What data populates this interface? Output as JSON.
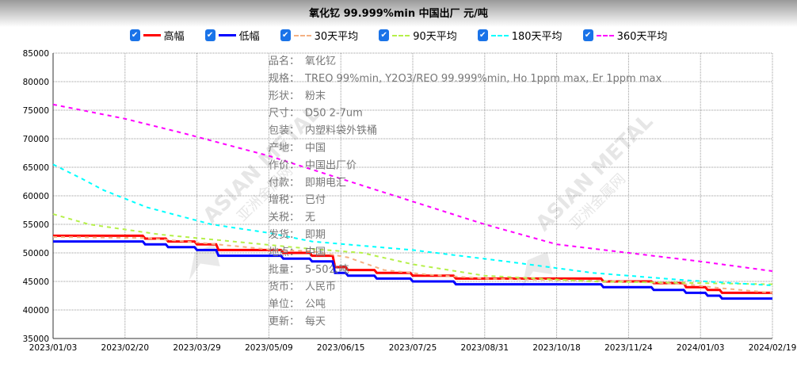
{
  "chart_data": {
    "type": "line",
    "title": "氧化钇 99.999%min 中国出厂 元/吨",
    "xlabel": "",
    "ylabel": "",
    "x_ticks": [
      "2023/01/03",
      "2023/02/20",
      "2023/03/29",
      "2023/05/09",
      "2023/06/15",
      "2023/07/25",
      "2023/08/31",
      "2023/10/18",
      "2023/11/24",
      "2024/01/03",
      "2024/02/19"
    ],
    "x_note": "x values are positions in tick-index units (0 = 2023/01/03, 10 = 2024/02/19)",
    "ylim": [
      35000,
      85000
    ],
    "y_ticks": [
      35000,
      40000,
      45000,
      50000,
      55000,
      60000,
      65000,
      70000,
      75000,
      80000,
      85000
    ],
    "grid": true,
    "legend_placement": "top-center",
    "series": [
      {
        "name": "高幅",
        "color": "#ff0000",
        "style": "step",
        "width": 3,
        "points": [
          [
            0,
            53000
          ],
          [
            1.28,
            52500
          ],
          [
            1.6,
            52000
          ],
          [
            2.0,
            51500
          ],
          [
            2.3,
            50500
          ],
          [
            3.2,
            50000
          ],
          [
            3.6,
            49500
          ],
          [
            3.92,
            47500
          ],
          [
            4.1,
            47000
          ],
          [
            4.5,
            46500
          ],
          [
            5.0,
            46000
          ],
          [
            5.6,
            45500
          ],
          [
            7.65,
            45000
          ],
          [
            8.35,
            44700
          ],
          [
            8.8,
            44000
          ],
          [
            9.1,
            43500
          ],
          [
            9.3,
            43000
          ],
          [
            10,
            43000
          ]
        ]
      },
      {
        "name": "低幅",
        "color": "#0000ff",
        "style": "step",
        "width": 3,
        "points": [
          [
            0,
            52000
          ],
          [
            1.28,
            51500
          ],
          [
            1.6,
            51000
          ],
          [
            2.0,
            50500
          ],
          [
            2.3,
            49500
          ],
          [
            3.2,
            49000
          ],
          [
            3.6,
            48500
          ],
          [
            3.92,
            46500
          ],
          [
            4.1,
            46000
          ],
          [
            4.5,
            45500
          ],
          [
            5.0,
            45000
          ],
          [
            5.6,
            44500
          ],
          [
            7.65,
            44000
          ],
          [
            8.35,
            43500
          ],
          [
            8.8,
            43000
          ],
          [
            9.1,
            42500
          ],
          [
            9.3,
            42000
          ],
          [
            10,
            42000
          ]
        ]
      },
      {
        "name": "30天平均",
        "color": "#f4b183",
        "style": "dash",
        "width": 2,
        "points": [
          [
            0,
            52800
          ],
          [
            1.3,
            52600
          ],
          [
            2.2,
            51600
          ],
          [
            3.0,
            50600
          ],
          [
            3.6,
            50300
          ],
          [
            4.1,
            49200
          ],
          [
            4.6,
            47000
          ],
          [
            5.2,
            46200
          ],
          [
            6.0,
            45500
          ],
          [
            8.0,
            45000
          ],
          [
            8.8,
            44500
          ],
          [
            9.3,
            43800
          ],
          [
            10,
            43000
          ]
        ]
      },
      {
        "name": "90天平均",
        "color": "#b6f04a",
        "style": "dash",
        "width": 2,
        "points": [
          [
            0,
            56800
          ],
          [
            0.5,
            55000
          ],
          [
            1.5,
            53200
          ],
          [
            2.5,
            52000
          ],
          [
            3.5,
            50800
          ],
          [
            4.3,
            50000
          ],
          [
            5.0,
            48000
          ],
          [
            6.0,
            46000
          ],
          [
            7.5,
            45000
          ],
          [
            10,
            44500
          ]
        ]
      },
      {
        "name": "180天平均",
        "color": "#00ffff",
        "style": "dash",
        "width": 2,
        "points": [
          [
            0,
            65500
          ],
          [
            0.4,
            63000
          ],
          [
            0.7,
            61000
          ],
          [
            1.3,
            58000
          ],
          [
            2.2,
            55000
          ],
          [
            3.0,
            53500
          ],
          [
            3.6,
            52000
          ],
          [
            5.0,
            50500
          ],
          [
            6.3,
            48500
          ],
          [
            7.5,
            46500
          ],
          [
            8.8,
            45200
          ],
          [
            10,
            44300
          ]
        ]
      },
      {
        "name": "360天平均",
        "color": "#ff00ff",
        "style": "dash",
        "width": 2,
        "points": [
          [
            0,
            76000
          ],
          [
            1,
            73500
          ],
          [
            1.8,
            71000
          ],
          [
            3,
            67000
          ],
          [
            4,
            63000
          ],
          [
            5,
            59000
          ],
          [
            6,
            55000
          ],
          [
            7,
            51500
          ],
          [
            8,
            50000
          ],
          [
            9,
            48500
          ],
          [
            10,
            46800
          ]
        ]
      }
    ],
    "info_box": [
      {
        "k": "品名：",
        "v": "氧化钇"
      },
      {
        "k": "规格：",
        "v": "TREO 99%min, Y2O3/REO 99.999%min, Ho 1ppm max, Er 1ppm max"
      },
      {
        "k": "形状：",
        "v": "粉末"
      },
      {
        "k": "尺寸：",
        "v": "D50 2-7um"
      },
      {
        "k": "包装：",
        "v": "内塑料袋外铁桶"
      },
      {
        "k": "产地：",
        "v": "中国"
      },
      {
        "k": "作价：",
        "v": "中国出厂价"
      },
      {
        "k": "付款：",
        "v": "即期电汇"
      },
      {
        "k": "增税：",
        "v": "已付"
      },
      {
        "k": "关税：",
        "v": "无"
      },
      {
        "k": "发货：",
        "v": "即期"
      },
      {
        "k": "地点：",
        "v": "中国"
      },
      {
        "k": "批量：",
        "v": "5-50公吨"
      },
      {
        "k": "货币：",
        "v": "人民币"
      },
      {
        "k": "单位：",
        "v": "公吨"
      },
      {
        "k": "更新：",
        "v": "每天"
      }
    ],
    "watermark": "ASIAN METAL 亚洲金属网"
  }
}
